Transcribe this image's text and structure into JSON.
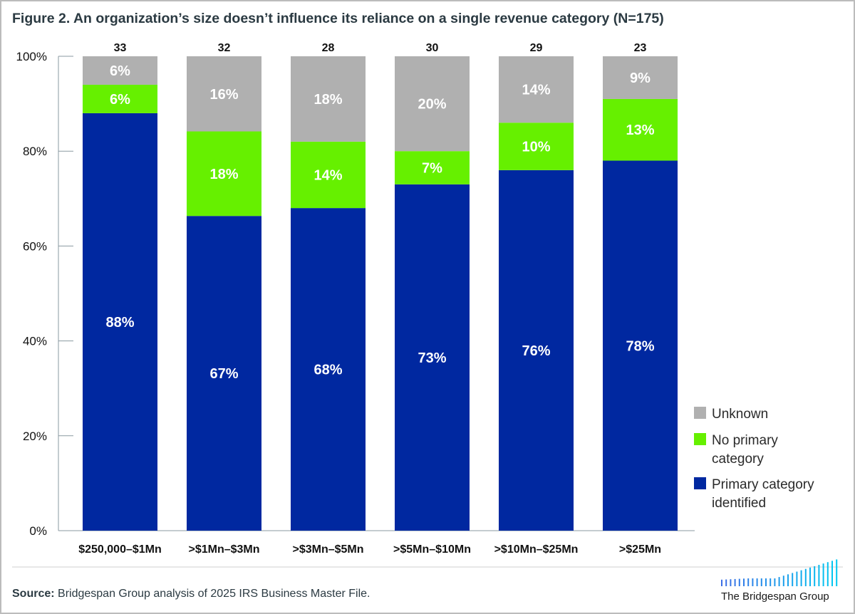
{
  "chart_data": {
    "type": "bar",
    "stacked": true,
    "title": "Figure 2. An organization’s size doesn’t influence its reliance on a single revenue category (N=175)",
    "categories": [
      "$250,000–$1Mn",
      ">$1Mn–$3Mn",
      ">$3Mn–$5Mn",
      ">$5Mn–$10Mn",
      ">$10Mn–$25Mn",
      ">$25Mn"
    ],
    "n_labels": [
      "33",
      "32",
      "28",
      "30",
      "29",
      "23"
    ],
    "series": [
      {
        "name": "Primary category identified",
        "color": "#0028a0",
        "values": [
          88,
          67,
          68,
          73,
          76,
          78
        ]
      },
      {
        "name": "No primary category",
        "color": "#66f000",
        "values": [
          6,
          18,
          14,
          7,
          10,
          13
        ]
      },
      {
        "name": "Unknown",
        "color": "#b0b0b0",
        "values": [
          6,
          16,
          18,
          20,
          14,
          9
        ]
      }
    ],
    "ylim": [
      0,
      100
    ],
    "yticks": [
      "0%",
      "20%",
      "40%",
      "60%",
      "80%",
      "100%"
    ],
    "legend_position": "right",
    "legend": [
      {
        "label_lines": [
          "Unknown"
        ],
        "color": "#b0b0b0"
      },
      {
        "label_lines": [
          "No primary category"
        ],
        "display_lines": [
          "No primary",
          "category"
        ],
        "color": "#66f000"
      },
      {
        "label_lines": [
          "Primary category identified"
        ],
        "display_lines": [
          "Primary category",
          "identified"
        ],
        "color": "#0028a0"
      }
    ],
    "grid": false
  },
  "source": {
    "label": "Source:",
    "text": " Bridgespan Group analysis of 2025 IRS Business Master File."
  },
  "logo": {
    "text": "The Bridgespan Group"
  }
}
